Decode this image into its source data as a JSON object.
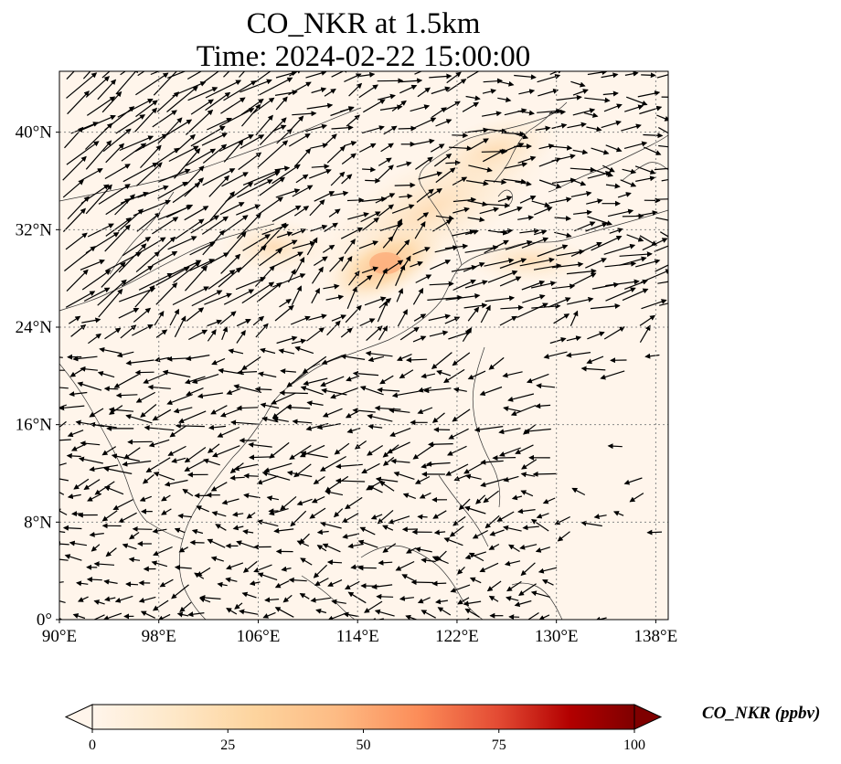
{
  "title": {
    "line1": "CO_NKR at 1.5km",
    "line2": "Time: 2024-02-22 15:00:00"
  },
  "map": {
    "lon_range": [
      90,
      139
    ],
    "lat_range": [
      0,
      45
    ],
    "lon_ticks": [
      "90°E",
      "98°E",
      "106°E",
      "114°E",
      "122°E",
      "130°E",
      "138°E"
    ],
    "lat_ticks": [
      "0°",
      "8°N",
      "16°N",
      "24°N",
      "32°N",
      "40°N"
    ],
    "lon_tick_values": [
      90,
      98,
      106,
      114,
      122,
      130,
      138
    ],
    "lat_tick_values": [
      0,
      8,
      16,
      24,
      32,
      40
    ],
    "gridlines": "dotted",
    "background_color": "#fff5eb",
    "field": "CO_NKR",
    "overlay": "wind vectors (quiver)",
    "concentration_max_region": "eastern China",
    "concentration_peak_value_ppbv": 35
  },
  "colorbar": {
    "label": "CO_NKR (ppbv)",
    "ticks": [
      "0",
      "25",
      "50",
      "75",
      "100"
    ],
    "tick_values": [
      0,
      25,
      50,
      75,
      100
    ],
    "range": [
      0,
      100
    ],
    "colormap": "OrRd",
    "colors": [
      "#fff5eb",
      "#fdd49e",
      "#fdbb84",
      "#fc8d59",
      "#ef6548",
      "#d7301f",
      "#b30000",
      "#7f0000"
    ],
    "extend": "both"
  }
}
